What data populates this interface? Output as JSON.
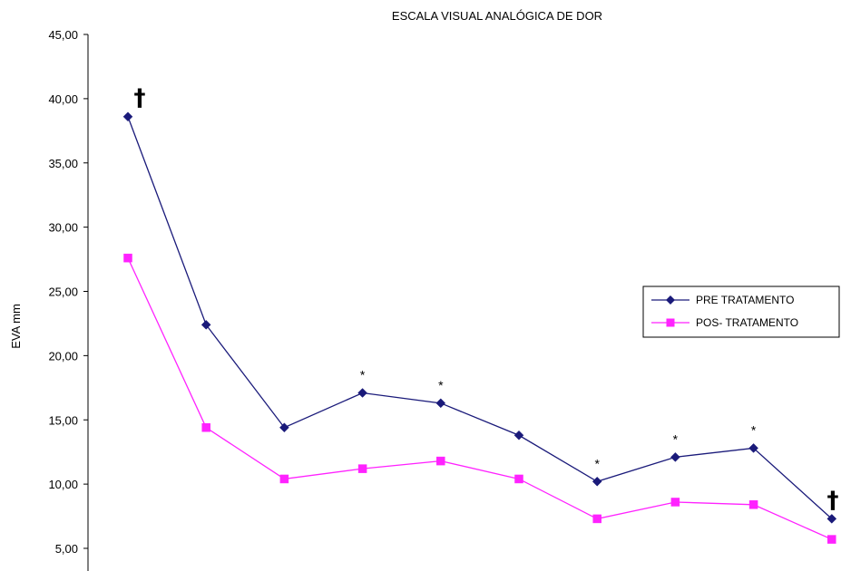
{
  "chart_data": {
    "type": "line",
    "title": "ESCALA VISUAL ANALÓGICA DE DOR",
    "xlabel": "",
    "ylabel": "EVA mm",
    "ylim": [
      5,
      45
    ],
    "yticks": [
      "45,00",
      "40,00",
      "35,00",
      "30,00",
      "25,00",
      "20,00",
      "15,00",
      "10,00",
      "5,00"
    ],
    "ytick_values": [
      45,
      40,
      35,
      30,
      25,
      20,
      15,
      10,
      5
    ],
    "x": [
      1,
      2,
      3,
      4,
      5,
      6,
      7,
      8,
      9,
      10
    ],
    "series": [
      {
        "name": "PRE TRATAMENTO",
        "color": "#1a1a7a",
        "marker": "diamond",
        "values": [
          38.6,
          22.4,
          14.4,
          17.1,
          16.3,
          13.8,
          10.2,
          12.1,
          12.8,
          7.3
        ]
      },
      {
        "name": "POS- TRATAMENTO",
        "color": "#ff22ff",
        "marker": "square",
        "values": [
          27.6,
          14.4,
          10.4,
          11.2,
          11.8,
          10.4,
          7.3,
          8.6,
          8.4,
          5.7
        ]
      }
    ],
    "annotations": [
      {
        "text": "†",
        "index": 0,
        "series": 0,
        "kind": "dagger"
      },
      {
        "text": "*",
        "index": 3,
        "series": 0,
        "kind": "star"
      },
      {
        "text": "*",
        "index": 4,
        "series": 0,
        "kind": "star"
      },
      {
        "text": "*",
        "index": 6,
        "series": 0,
        "kind": "star"
      },
      {
        "text": "*",
        "index": 7,
        "series": 0,
        "kind": "star"
      },
      {
        "text": "*",
        "index": 8,
        "series": 0,
        "kind": "star"
      },
      {
        "text": "†",
        "index": 9,
        "series": 0,
        "kind": "dagger"
      }
    ],
    "legend": {
      "position": "right",
      "entries": [
        "PRE TRATAMENTO",
        "POS- TRATAMENTO"
      ]
    },
    "grid": false
  }
}
